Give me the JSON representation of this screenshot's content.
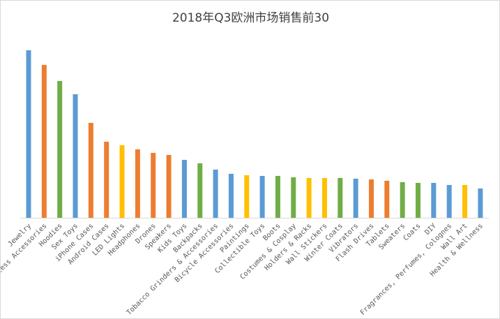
{
  "chart_data": {
    "type": "bar",
    "title": "2018年Q3欧洲市场销售前30",
    "xlabel": "",
    "ylabel": "",
    "grid": false,
    "legend": "none",
    "categories": [
      "Wireless Accessories",
      "Jewelry",
      "Hoodies",
      "Sex Toys",
      "iPhone Cases",
      "Android Cases",
      "LED Lights",
      "Headphones",
      "Drones",
      "Speakers",
      "Kids Toys",
      "Backpacks",
      "Tobacco Grinders & Accessories",
      "Bicycle Accessories",
      "Paintings",
      "Collectible Toys",
      "Boots",
      "Costumes & Cosplay",
      "Holders & Racks",
      "Wall Stickers",
      "Winter Coats",
      "Vibrators",
      "Flash Drives",
      "Tablets",
      "Sweaters",
      "Coats",
      "DIY",
      "Fragrances, Perfumes, Colognes",
      "Wall Art",
      "Health & Wellness"
    ],
    "values": [
      240,
      219,
      196,
      177,
      136,
      109,
      104,
      98,
      93,
      90,
      83,
      78,
      69,
      63,
      61,
      60,
      60,
      58,
      57,
      57,
      57,
      56,
      55,
      53,
      51,
      50,
      50,
      47,
      47,
      42
    ],
    "bar_colors": [
      "#5b9bd5",
      "#ed7d31",
      "#70ad47",
      "#5b9bd5",
      "#ed7d31",
      "#ed7d31",
      "#ffc000",
      "#ed7d31",
      "#ed7d31",
      "#ed7d31",
      "#5b9bd5",
      "#70ad47",
      "#5b9bd5",
      "#5b9bd5",
      "#ffc000",
      "#5b9bd5",
      "#70ad47",
      "#70ad47",
      "#ffc000",
      "#ffc000",
      "#70ad47",
      "#5b9bd5",
      "#ed7d31",
      "#ed7d31",
      "#70ad47",
      "#70ad47",
      "#5b9bd5",
      "#5b9bd5",
      "#ffc000",
      "#5b9bd5"
    ],
    "ylim": [
      0,
      240
    ]
  }
}
